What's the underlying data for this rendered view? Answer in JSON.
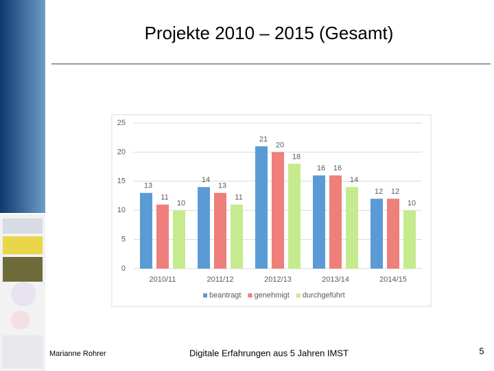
{
  "chart_data": {
    "type": "bar",
    "title": "Projekte 2010 – 2015 (Gesamt)",
    "categories": [
      "2010/11",
      "2011/12",
      "2012/13",
      "2013/14",
      "2014/15"
    ],
    "series": [
      {
        "name": "beantragt",
        "color": "#5b9bd5",
        "values": [
          13,
          14,
          21,
          16,
          12
        ]
      },
      {
        "name": "genehmigt",
        "color": "#ee7f7b",
        "values": [
          11,
          13,
          20,
          16,
          12
        ]
      },
      {
        "name": "durchgeführt",
        "color": "#c6ea8e",
        "values": [
          10,
          11,
          18,
          14,
          10
        ]
      }
    ],
    "ylim": [
      0,
      25
    ],
    "yticks": [
      0,
      5,
      10,
      15,
      20,
      25
    ],
    "grid": true,
    "legend": "bottom"
  },
  "footer": {
    "author": "Marianne Rohrer",
    "center": "Digitale Erfahrungen aus 5 Jahren IMST",
    "page": "5"
  }
}
